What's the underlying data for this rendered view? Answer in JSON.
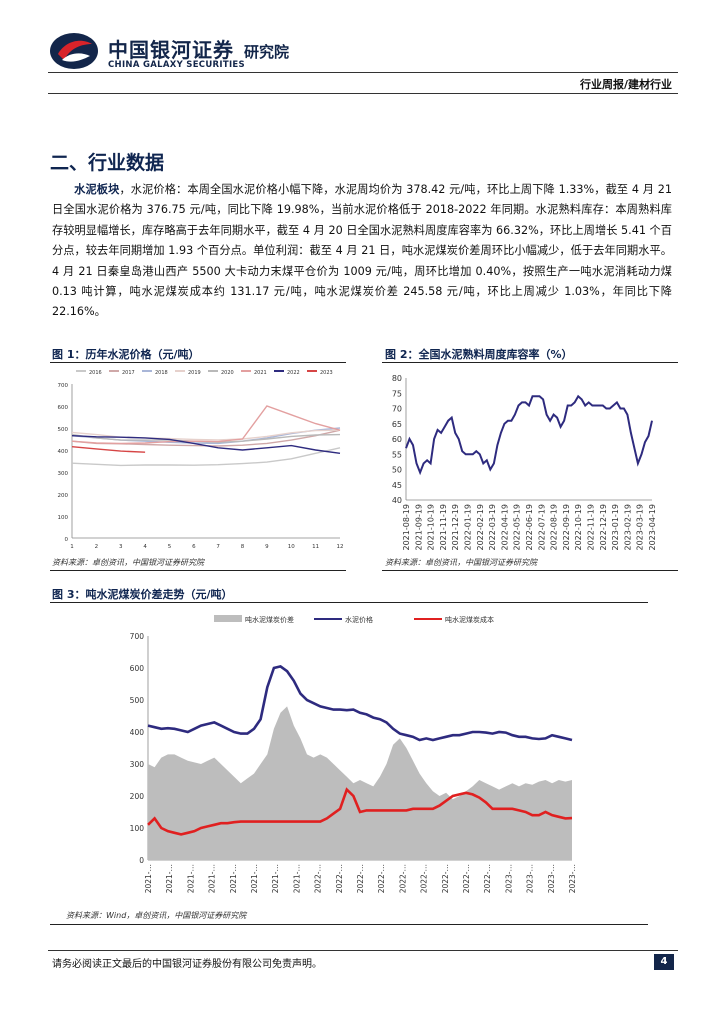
{
  "header": {
    "brand_cn": "中国银河证券",
    "brand_en": "CHINA GALAXY SECURITIES",
    "brand_sub": "研究院",
    "report_type": "行业周报/建材行业"
  },
  "section_title": "二、行业数据",
  "paragraph": {
    "label": "水泥板块",
    "text": "，水泥价格：本周全国水泥价格小幅下降，水泥周均价为 378.42 元/吨，环比上周下降 1.33%，截至 4 月 21 日全国水泥价格为 376.75 元/吨，同比下降 19.98%，当前水泥价格低于 2018-2022 年同期。水泥熟料库存：本周熟料库存较明显幅增长，库存略高于去年同期水平，截至 4 月 20 日全国水泥熟料周度库容率为 66.32%，环比上周增长 5.41 个百分点，较去年同期增加 1.93 个百分点。单位利润：截至 4 月 21 日，吨水泥煤炭价差周环比小幅减少，低于去年同期水平。4 月 21 日秦皇岛港山西产 5500 大卡动力末煤平仓价为 1009 元/吨，周环比增加 0.40%，按照生产一吨水泥消耗动力煤 0.13 吨计算，吨水泥煤炭成本约 131.17 元/吨，吨水泥煤炭价差 245.58 元/吨，环比上周减少 1.03%，年同比下降 22.16%。"
  },
  "figures": {
    "fig1_title": "图 1：历年水泥价格（元/吨）",
    "fig2_title": "图 2：全国水泥熟料周度库容率（%）",
    "fig3_title": "图 3：吨水泥煤炭价差走势（元/吨）",
    "source_12": "资料来源：卓创资讯，中国银河证券研究院",
    "source_3": "资料来源：Wind，卓创资讯，中国银河证券研究院"
  },
  "footer": {
    "disclaimer": "请务必阅读正文最后的中国银河证券股份有限公司免责声明。",
    "page": "4"
  },
  "chart_data": [
    {
      "type": "line",
      "title": "历年水泥价格（元/吨）",
      "ylim": [
        0,
        700
      ],
      "yticks": [
        "700",
        "600",
        "500",
        "400",
        "300",
        "200",
        "100",
        "0"
      ],
      "xticks": [
        "1",
        "2",
        "3",
        "4",
        "5",
        "6",
        "7",
        "8",
        "9",
        "10",
        "11",
        "12"
      ],
      "legend_position": "top",
      "series": [
        {
          "name": "2016",
          "color": "#c9c9c9",
          "values": [
            340,
            335,
            330,
            332,
            332,
            331,
            333,
            338,
            345,
            360,
            385,
            410
          ]
        },
        {
          "name": "2017",
          "color": "#cfa8a8",
          "values": [
            440,
            430,
            428,
            425,
            422,
            420,
            418,
            422,
            430,
            445,
            465,
            490
          ]
        },
        {
          "name": "2018",
          "color": "#a9b6d8",
          "values": [
            465,
            455,
            445,
            440,
            435,
            432,
            430,
            440,
            455,
            475,
            490,
            500
          ]
        },
        {
          "name": "2019",
          "color": "#e6d1cc",
          "values": [
            480,
            470,
            458,
            455,
            452,
            448,
            446,
            450,
            462,
            478,
            488,
            490
          ]
        },
        {
          "name": "2020",
          "color": "#b9b9b9",
          "values": [
            470,
            455,
            445,
            445,
            445,
            440,
            435,
            440,
            450,
            462,
            468,
            470
          ]
        },
        {
          "name": "2021",
          "color": "#e3a0a0",
          "values": [
            440,
            432,
            430,
            432,
            438,
            440,
            438,
            450,
            600,
            560,
            520,
            490
          ]
        },
        {
          "name": "2022",
          "color": "#2e2b7f",
          "values": [
            465,
            460,
            458,
            455,
            448,
            430,
            410,
            400,
            410,
            420,
            400,
            385
          ]
        },
        {
          "name": "2023",
          "color": "#d64545",
          "values": [
            415,
            405,
            395,
            390
          ]
        }
      ]
    },
    {
      "type": "line",
      "title": "全国水泥熟料周度库容率（%）",
      "ylim": [
        40,
        80
      ],
      "yticks": [
        "80",
        "75",
        "70",
        "65",
        "60",
        "55",
        "50",
        "45",
        "40"
      ],
      "xticks": [
        "2021-08-19",
        "2021-09-19",
        "2021-10-19",
        "2021-11-19",
        "2021-12-19",
        "2022-01-19",
        "2022-02-19",
        "2022-03-19",
        "2022-04-19",
        "2022-05-19",
        "2022-06-19",
        "2022-07-19",
        "2022-08-19",
        "2022-09-19",
        "2022-10-19",
        "2022-11-19",
        "2022-12-19",
        "2023-01-19",
        "2023-02-19",
        "2023-03-19",
        "2023-04-19"
      ],
      "series": [
        {
          "name": "库容率",
          "color": "#2e2b7f",
          "values": [
            57,
            60,
            58,
            52,
            49,
            52,
            53,
            52,
            60,
            63,
            62,
            64,
            66,
            67,
            62,
            60,
            56,
            55,
            55,
            55,
            56,
            55,
            52,
            53,
            50,
            52,
            58,
            62,
            65,
            66,
            66,
            68,
            71,
            72,
            72,
            71,
            74,
            74,
            74,
            73,
            68,
            66,
            68,
            67,
            64,
            66,
            71,
            71,
            72,
            74,
            73,
            71,
            72,
            71,
            71,
            71,
            71,
            70,
            70,
            71,
            72,
            70,
            70,
            68,
            62,
            57,
            52,
            55,
            59,
            61,
            66
          ]
        }
      ]
    },
    {
      "type": "area",
      "title": "吨水泥煤炭价差走势（元/吨）",
      "ylim": [
        0,
        700
      ],
      "yticks": [
        "700",
        "600",
        "500",
        "400",
        "300",
        "200",
        "100",
        "0"
      ],
      "xticks": [
        "2021-…",
        "2021-…",
        "2021-…",
        "2021-…",
        "2021-…",
        "2021-…",
        "2021-…",
        "2021-…",
        "2022-…",
        "2022-…",
        "2022-…",
        "2022-…",
        "2022-…",
        "2022-…",
        "2022-…",
        "2022-…",
        "2022-…",
        "2023-…",
        "2023-…",
        "2023-…",
        "2023-…"
      ],
      "legend_position": "top",
      "series": [
        {
          "name": "吨水泥煤炭价差",
          "color": "#bdbdbd",
          "values": [
            300,
            290,
            320,
            330,
            330,
            320,
            310,
            305,
            300,
            310,
            320,
            300,
            280,
            260,
            240,
            255,
            270,
            300,
            330,
            410,
            460,
            480,
            420,
            380,
            330,
            320,
            330,
            320,
            300,
            280,
            260,
            240,
            250,
            240,
            230,
            260,
            300,
            360,
            380,
            350,
            310,
            270,
            240,
            215,
            200,
            210,
            190,
            200,
            215,
            230,
            250,
            240,
            230,
            220,
            230,
            240,
            230,
            240,
            235,
            245,
            250,
            240,
            250,
            245,
            250
          ]
        },
        {
          "name": "水泥价格",
          "color": "#2e2b7f",
          "values": [
            420,
            415,
            410,
            412,
            410,
            405,
            400,
            410,
            420,
            425,
            430,
            420,
            410,
            400,
            395,
            395,
            410,
            440,
            540,
            600,
            605,
            590,
            560,
            520,
            500,
            490,
            480,
            475,
            470,
            470,
            468,
            470,
            460,
            455,
            445,
            440,
            430,
            410,
            395,
            390,
            385,
            375,
            380,
            375,
            380,
            385,
            390,
            390,
            395,
            400,
            400,
            398,
            395,
            400,
            398,
            390,
            385,
            385,
            380,
            378,
            380,
            390,
            385,
            380,
            375
          ]
        },
        {
          "name": "吨水泥煤炭成本",
          "color": "#e02020",
          "values": [
            110,
            130,
            100,
            90,
            85,
            80,
            85,
            90,
            100,
            105,
            110,
            115,
            115,
            118,
            120,
            120,
            120,
            120,
            120,
            120,
            120,
            120,
            120,
            120,
            120,
            120,
            120,
            130,
            145,
            160,
            220,
            200,
            150,
            155,
            155,
            155,
            155,
            155,
            155,
            155,
            160,
            160,
            160,
            160,
            170,
            185,
            200,
            205,
            210,
            205,
            195,
            180,
            160,
            160,
            160,
            160,
            155,
            150,
            140,
            140,
            150,
            140,
            135,
            130,
            131
          ]
        }
      ]
    }
  ]
}
